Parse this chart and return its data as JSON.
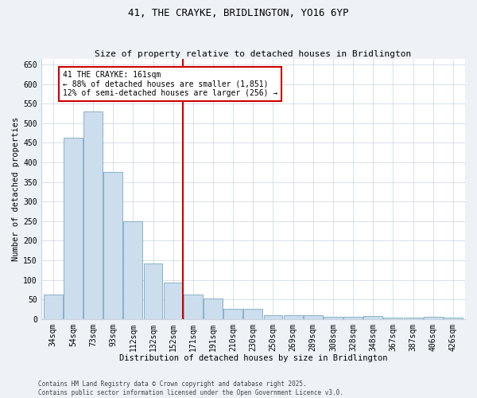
{
  "title": "41, THE CRAYKE, BRIDLINGTON, YO16 6YP",
  "subtitle": "Size of property relative to detached houses in Bridlington",
  "xlabel": "Distribution of detached houses by size in Bridlington",
  "ylabel": "Number of detached properties",
  "categories": [
    "34sqm",
    "54sqm",
    "73sqm",
    "93sqm",
    "112sqm",
    "132sqm",
    "152sqm",
    "171sqm",
    "191sqm",
    "210sqm",
    "230sqm",
    "250sqm",
    "269sqm",
    "289sqm",
    "308sqm",
    "328sqm",
    "348sqm",
    "367sqm",
    "387sqm",
    "406sqm",
    "426sqm"
  ],
  "values": [
    62,
    463,
    530,
    375,
    250,
    141,
    93,
    62,
    53,
    25,
    25,
    10,
    10,
    10,
    6,
    6,
    8,
    4,
    4,
    5,
    3
  ],
  "bar_color": "#ccdded",
  "bar_edge_color": "#7aaabf",
  "vline_color": "#cc0000",
  "annotation_title": "41 THE CRAYKE: 161sqm",
  "annotation_line1": "← 88% of detached houses are smaller (1,851)",
  "annotation_line2": "12% of semi-detached houses are larger (256) →",
  "annotation_box_color": "#cc0000",
  "ylim": [
    0,
    665
  ],
  "yticks": [
    0,
    50,
    100,
    150,
    200,
    250,
    300,
    350,
    400,
    450,
    500,
    550,
    600,
    650
  ],
  "footnote1": "Contains HM Land Registry data © Crown copyright and database right 2025.",
  "footnote2": "Contains public sector information licensed under the Open Government Licence v3.0.",
  "bg_color": "#eef2f7",
  "plot_bg_color": "#ffffff",
  "grid_color": "#c8d4e0",
  "title_fontsize": 9,
  "subtitle_fontsize": 8,
  "tick_fontsize": 7,
  "label_fontsize": 7.5,
  "annot_fontsize": 7,
  "footnote_fontsize": 5.5
}
